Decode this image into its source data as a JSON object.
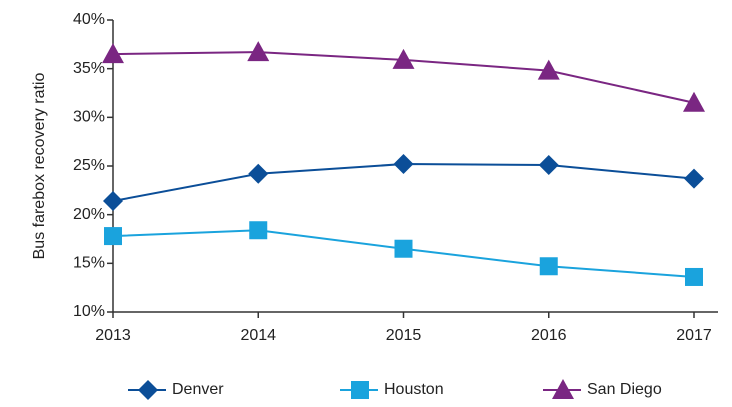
{
  "chart_data": {
    "type": "line",
    "y_label": "Bus farebox recovery ratio",
    "categories": [
      "2013",
      "2014",
      "2015",
      "2016",
      "2017"
    ],
    "series": [
      {
        "name": "Denver",
        "color": "#0b4e98",
        "marker": "diamond",
        "values": [
          21.4,
          24.2,
          25.2,
          25.1,
          23.7
        ]
      },
      {
        "name": "Houston",
        "color": "#1aa3dd",
        "marker": "square",
        "values": [
          17.8,
          18.4,
          16.5,
          14.7,
          13.6
        ]
      },
      {
        "name": "San Diego",
        "color": "#7a2682",
        "marker": "triangle",
        "values": [
          36.5,
          36.7,
          35.9,
          34.8,
          31.5
        ]
      }
    ],
    "ylim": [
      10,
      40
    ],
    "yticks": [
      {
        "value": 10,
        "label": "10%"
      },
      {
        "value": 15,
        "label": "15%"
      },
      {
        "value": 20,
        "label": "20%"
      },
      {
        "value": 25,
        "label": "25%"
      },
      {
        "value": 30,
        "label": "30%"
      },
      {
        "value": 35,
        "label": "35%"
      },
      {
        "value": 40,
        "label": "40%"
      }
    ],
    "grid": false,
    "legend": "bottom"
  }
}
